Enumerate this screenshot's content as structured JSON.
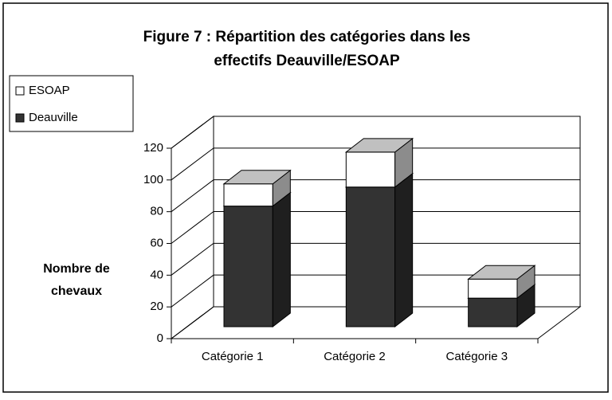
{
  "chart_data": {
    "type": "bar3d-stacked",
    "title": [
      "Figure 7 : Répartition des catégories dans les",
      "effectifs Deauville/ESOAP"
    ],
    "ylabel": [
      "Nombre de",
      "chevaux"
    ],
    "categories": [
      "Catégorie 1",
      "Catégorie 2",
      "Catégorie 3"
    ],
    "series": [
      {
        "name": "Deauville",
        "color": "#333333",
        "values": [
          76,
          88,
          18
        ]
      },
      {
        "name": "ESOAP",
        "color": "#ffffff",
        "values": [
          14,
          22,
          12
        ]
      }
    ],
    "ylim": [
      0,
      120
    ],
    "yticks": [
      0,
      20,
      40,
      60,
      80,
      100,
      120
    ],
    "grid": true,
    "legend": "upper left"
  }
}
